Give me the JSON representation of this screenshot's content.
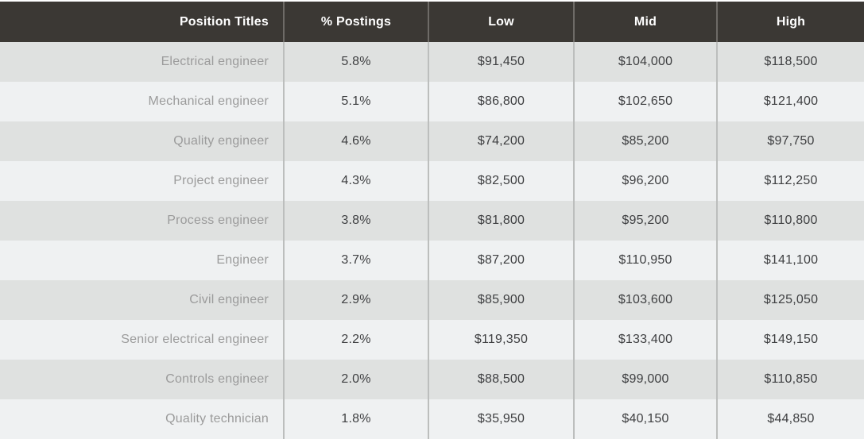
{
  "table": {
    "columns": [
      {
        "label": "Position Titles"
      },
      {
        "label": "% Postings"
      },
      {
        "label": "Low"
      },
      {
        "label": "Mid"
      },
      {
        "label": "High"
      }
    ],
    "rows": [
      {
        "title": "Electrical engineer",
        "postings": "5.8%",
        "low": "$91,450",
        "mid": "$104,000",
        "high": "$118,500"
      },
      {
        "title": "Mechanical engineer",
        "postings": "5.1%",
        "low": "$86,800",
        "mid": "$102,650",
        "high": "$121,400"
      },
      {
        "title": "Quality engineer",
        "postings": "4.6%",
        "low": "$74,200",
        "mid": "$85,200",
        "high": "$97,750"
      },
      {
        "title": "Project engineer",
        "postings": "4.3%",
        "low": "$82,500",
        "mid": "$96,200",
        "high": "$112,250"
      },
      {
        "title": "Process engineer",
        "postings": "3.8%",
        "low": "$81,800",
        "mid": "$95,200",
        "high": "$110,800"
      },
      {
        "title": "Engineer",
        "postings": "3.7%",
        "low": "$87,200",
        "mid": "$110,950",
        "high": "$141,100"
      },
      {
        "title": "Civil engineer",
        "postings": "2.9%",
        "low": "$85,900",
        "mid": "$103,600",
        "high": "$125,050"
      },
      {
        "title": "Senior electrical engineer",
        "postings": "2.2%",
        "low": "$119,350",
        "mid": "$133,400",
        "high": "$149,150"
      },
      {
        "title": "Controls engineer",
        "postings": "2.0%",
        "low": "$88,500",
        "mid": "$99,000",
        "high": "$110,850"
      },
      {
        "title": "Quality technician",
        "postings": "1.8%",
        "low": "$35,950",
        "mid": "$40,150",
        "high": "$44,850"
      }
    ]
  },
  "colors": {
    "header_bg": "#3b3834",
    "header_text": "#ffffff",
    "row_stripe_dark": "#dfe1e0",
    "row_stripe_light": "#eff1f2",
    "title_text": "#9b9b9b",
    "value_text": "#3e3f41",
    "divider_body": "#bcbebd",
    "divider_header": "#6e6b67"
  }
}
